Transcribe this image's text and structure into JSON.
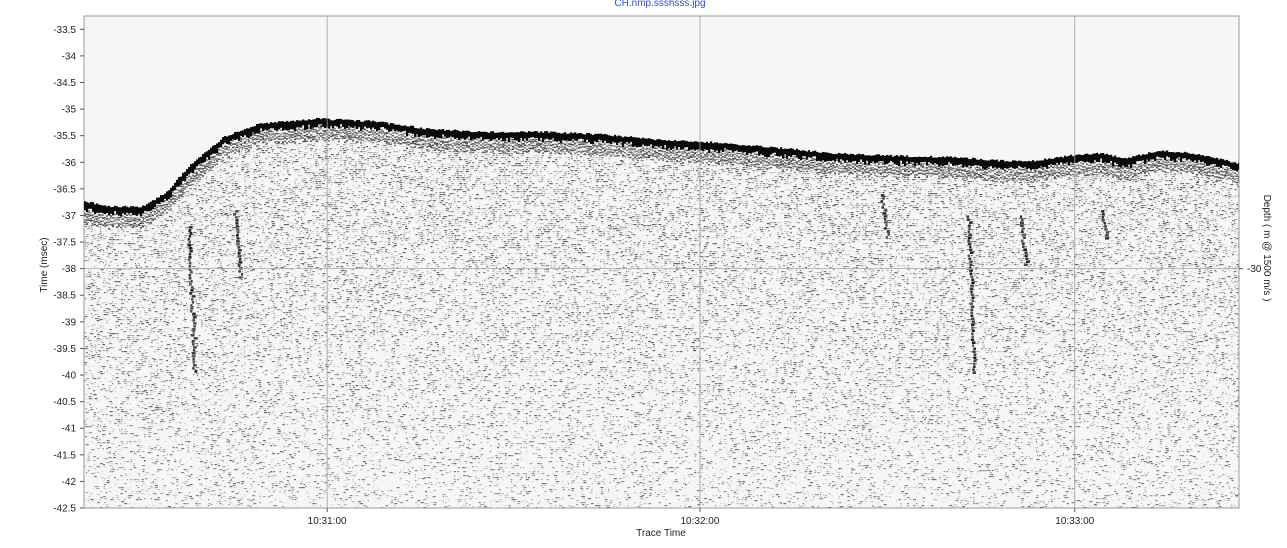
{
  "window": {
    "file_title": "CH.nmp.ssshsss.jpg"
  },
  "chart_data": {
    "type": "heatmap",
    "description_source": "sub-bottom profiler trace display",
    "title": "",
    "xlabel": "Trace Time",
    "ylabel": "Time (msec)",
    "y2label": "Depth ( m @ 1500 m/s )",
    "x_ticks": [
      "10:31:00",
      "10:32:00",
      "10:33:00"
    ],
    "x_tick_fraction": [
      0.2105,
      0.5333,
      0.8578
    ],
    "y_ticks": [
      -33.5,
      -34,
      -34.5,
      -35,
      -35.5,
      -36,
      -36.5,
      -37,
      -37.5,
      -38,
      -38.5,
      -39,
      -39.5,
      -40,
      -40.5,
      -41,
      -41.5,
      -42,
      -42.5
    ],
    "ylim": [
      -33.25,
      -42.5
    ],
    "y2_ticks": [
      {
        "label": "-30",
        "time": -38.0
      }
    ],
    "grid": true,
    "seabed_profile": {
      "x_fraction": [
        0.0,
        0.02,
        0.05,
        0.07,
        0.09,
        0.12,
        0.15,
        0.2,
        0.25,
        0.3,
        0.35,
        0.4,
        0.45,
        0.5,
        0.55,
        0.6,
        0.65,
        0.7,
        0.75,
        0.8,
        0.82,
        0.85,
        0.88,
        0.9,
        0.93,
        0.96,
        0.98,
        1.0
      ],
      "time_msec": [
        -36.75,
        -36.85,
        -36.85,
        -36.6,
        -36.1,
        -35.55,
        -35.3,
        -35.2,
        -35.25,
        -35.4,
        -35.45,
        -35.45,
        -35.5,
        -35.6,
        -35.65,
        -35.75,
        -35.85,
        -35.9,
        -35.92,
        -36.0,
        -36.0,
        -35.9,
        -35.85,
        -35.95,
        -35.8,
        -35.85,
        -35.95,
        -36.05
      ]
    },
    "vertical_streaks": [
      {
        "x_fraction": 0.09,
        "time_top": -37.2,
        "time_bottom": -40.0
      },
      {
        "x_fraction": 0.13,
        "time_top": -36.9,
        "time_bottom": -38.2
      },
      {
        "x_fraction": 0.69,
        "time_top": -36.6,
        "time_bottom": -37.5
      },
      {
        "x_fraction": 0.765,
        "time_top": -37.0,
        "time_bottom": -40.0
      },
      {
        "x_fraction": 0.81,
        "time_top": -37.0,
        "time_bottom": -38.0
      },
      {
        "x_fraction": 0.88,
        "time_top": -36.9,
        "time_bottom": -37.5
      }
    ]
  }
}
